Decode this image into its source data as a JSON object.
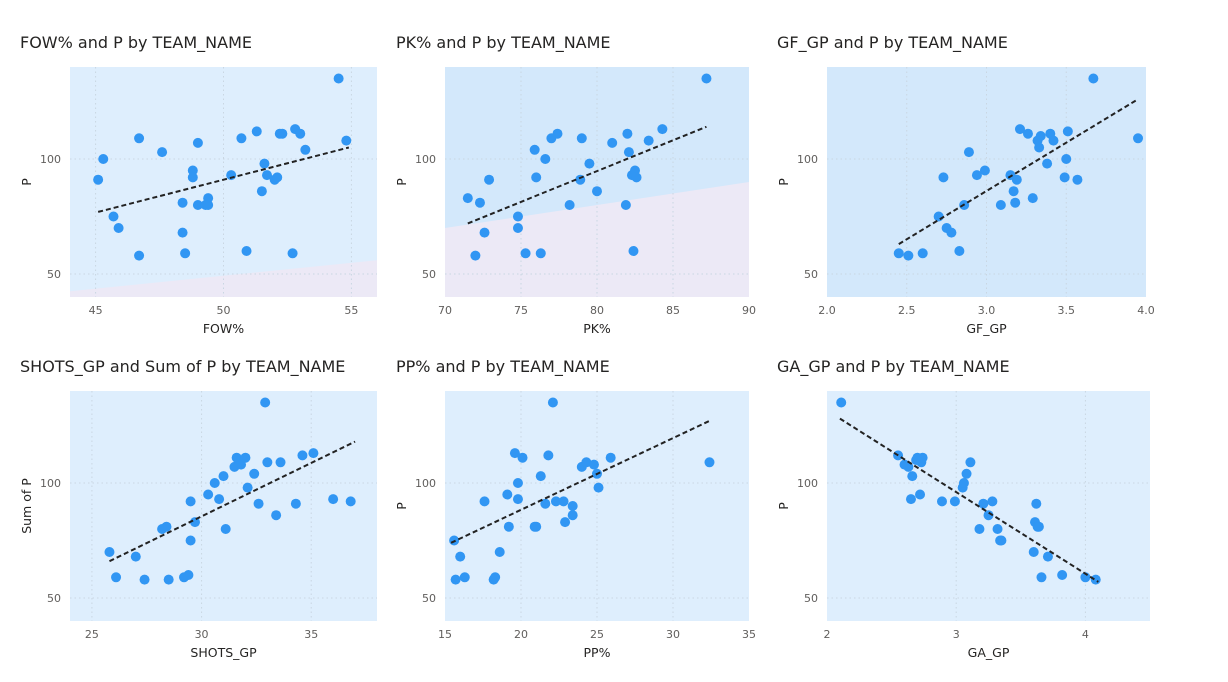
{
  "colors": {
    "point": "#3196f3",
    "trend": "#222222",
    "bg": "#deeefd",
    "bg2": "#d3e8fb",
    "band": "#ece9f6",
    "grid": "#c9d6e2",
    "axis_text": "#605e5c"
  },
  "chart_data": [
    {
      "type": "scatter",
      "title": "FOW% and P by TEAM_NAME",
      "xlabel": "FOW%",
      "ylabel": "P",
      "xlim": [
        44,
        56
      ],
      "ylim": [
        40,
        140
      ],
      "xticks": [
        45,
        50,
        55
      ],
      "yticks": [
        50,
        100
      ],
      "x": [
        45.1,
        45.3,
        45.7,
        45.9,
        46.7,
        46.7,
        47.6,
        48.4,
        48.4,
        48.5,
        48.8,
        48.8,
        49.0,
        49.0,
        49.3,
        49.4,
        49.4,
        50.3,
        50.7,
        50.9,
        51.3,
        51.5,
        51.6,
        51.7,
        52.0,
        52.1,
        52.2,
        52.3,
        52.7,
        52.8,
        53.0,
        53.2,
        54.5,
        54.8
      ],
      "y": [
        91,
        100,
        75,
        70,
        109,
        58,
        103,
        81,
        68,
        59,
        95,
        92,
        80,
        107,
        80,
        83,
        80,
        93,
        109,
        60,
        112,
        86,
        98,
        93,
        91,
        92,
        111,
        111,
        59,
        113,
        111,
        104,
        135,
        108
      ],
      "trend": [
        [
          45.1,
          77
        ],
        [
          54.9,
          105
        ]
      ]
    },
    {
      "type": "scatter",
      "title": "PK% and P by TEAM_NAME",
      "xlabel": "PK%",
      "ylabel": "P",
      "xlim": [
        70,
        90
      ],
      "ylim": [
        40,
        140
      ],
      "xticks": [
        70,
        75,
        80,
        85,
        90
      ],
      "yticks": [
        50,
        100
      ],
      "x": [
        71.5,
        72.0,
        72.3,
        72.6,
        72.9,
        74.8,
        74.8,
        75.3,
        75.9,
        76.0,
        76.3,
        76.6,
        77.0,
        77.4,
        78.2,
        78.9,
        79.0,
        79.5,
        80.0,
        81.0,
        81.9,
        82.0,
        82.1,
        82.3,
        82.4,
        82.5,
        82.6,
        83.4,
        84.3,
        87.2
      ],
      "y": [
        83,
        58,
        81,
        68,
        91,
        70,
        75,
        59,
        104,
        92,
        59,
        100,
        109,
        111,
        80,
        91,
        109,
        98,
        86,
        107,
        80,
        111,
        103,
        93,
        60,
        95,
        92,
        108,
        113,
        135
      ],
      "trend": [
        [
          71.5,
          72
        ],
        [
          87.2,
          114
        ]
      ]
    },
    {
      "type": "scatter",
      "title": "GF_GP and P by TEAM_NAME",
      "xlabel": "GF_GP",
      "ylabel": "P",
      "xlim": [
        2.0,
        4.0
      ],
      "ylim": [
        40,
        140
      ],
      "xticks": [
        2.0,
        2.5,
        3.0,
        3.5,
        4.0
      ],
      "yticks": [
        50,
        100
      ],
      "x": [
        2.45,
        2.51,
        2.6,
        2.7,
        2.73,
        2.75,
        2.78,
        2.83,
        2.86,
        2.89,
        2.94,
        2.99,
        3.09,
        3.15,
        3.17,
        3.18,
        3.19,
        3.21,
        3.26,
        3.29,
        3.32,
        3.33,
        3.34,
        3.38,
        3.4,
        3.42,
        3.49,
        3.5,
        3.51,
        3.57,
        3.67,
        3.95
      ],
      "y": [
        59,
        58,
        59,
        75,
        92,
        70,
        68,
        60,
        80,
        103,
        93,
        95,
        80,
        93,
        86,
        81,
        91,
        113,
        111,
        83,
        108,
        105,
        110,
        98,
        111,
        108,
        92,
        100,
        112,
        91,
        135,
        109
      ],
      "trend": [
        [
          2.45,
          63
        ],
        [
          3.95,
          126
        ]
      ]
    },
    {
      "type": "scatter",
      "title": "SHOTS_GP and Sum of P by TEAM_NAME",
      "xlabel": "SHOTS_GP",
      "ylabel": "Sum of P",
      "xlim": [
        24,
        38
      ],
      "ylim": [
        40,
        140
      ],
      "xticks": [
        25,
        30,
        35
      ],
      "yticks": [
        50,
        100
      ],
      "x": [
        25.8,
        26.1,
        27.0,
        27.4,
        28.2,
        28.4,
        28.5,
        29.2,
        29.4,
        29.5,
        29.5,
        29.7,
        30.3,
        30.6,
        30.8,
        31.0,
        31.1,
        31.5,
        31.6,
        31.8,
        32.0,
        32.1,
        32.4,
        32.6,
        32.9,
        33.0,
        33.4,
        33.6,
        34.3,
        34.6,
        35.1,
        36.0,
        36.8
      ],
      "y": [
        70,
        59,
        68,
        58,
        80,
        81,
        58,
        59,
        60,
        92,
        75,
        83,
        95,
        100,
        93,
        103,
        80,
        107,
        111,
        108,
        111,
        98,
        104,
        91,
        135,
        109,
        86,
        109,
        91,
        112,
        113,
        93,
        92
      ],
      "trend": [
        [
          25.8,
          66
        ],
        [
          37.0,
          118
        ]
      ]
    },
    {
      "type": "scatter",
      "title": "PP% and P by TEAM_NAME",
      "xlabel": "PP%",
      "ylabel": "P",
      "xlim": [
        15,
        35
      ],
      "ylim": [
        40,
        140
      ],
      "xticks": [
        15,
        20,
        25,
        30,
        35
      ],
      "yticks": [
        50,
        100
      ],
      "x": [
        15.6,
        15.7,
        16.0,
        16.3,
        17.6,
        18.2,
        18.3,
        18.6,
        19.1,
        19.2,
        19.6,
        19.8,
        19.8,
        20.1,
        20.9,
        21.0,
        21.3,
        21.6,
        21.8,
        22.1,
        22.3,
        22.8,
        22.9,
        23.4,
        23.4,
        24.0,
        24.3,
        24.8,
        25.0,
        25.1,
        25.9,
        32.4
      ],
      "y": [
        75,
        58,
        68,
        59,
        92,
        58,
        59,
        70,
        95,
        81,
        113,
        100,
        93,
        111,
        81,
        81,
        103,
        91,
        112,
        135,
        92,
        92,
        83,
        90,
        86,
        107,
        109,
        108,
        104,
        98,
        111,
        109
      ],
      "trend": [
        [
          15.4,
          74
        ],
        [
          32.4,
          127
        ]
      ]
    },
    {
      "type": "scatter",
      "title": "GA_GP and P by TEAM_NAME",
      "xlabel": "GA_GP",
      "ylabel": "P",
      "xlim": [
        2.0,
        4.5
      ],
      "ylim": [
        40,
        140
      ],
      "xticks": [
        2,
        3,
        4
      ],
      "yticks": [
        50,
        100
      ],
      "x": [
        2.11,
        2.55,
        2.6,
        2.63,
        2.65,
        2.66,
        2.69,
        2.7,
        2.72,
        2.73,
        2.74,
        2.89,
        2.99,
        3.05,
        3.06,
        3.08,
        3.11,
        3.18,
        3.21,
        3.25,
        3.28,
        3.32,
        3.34,
        3.35,
        3.6,
        3.61,
        3.62,
        3.63,
        3.64,
        3.66,
        3.71,
        3.82,
        4.0,
        4.08
      ],
      "y": [
        135,
        112,
        108,
        107,
        93,
        103,
        110,
        111,
        95,
        109,
        111,
        92,
        92,
        98,
        100,
        104,
        109,
        80,
        91,
        86,
        92,
        80,
        75,
        75,
        70,
        83,
        91,
        81,
        81,
        59,
        68,
        60,
        59,
        58
      ],
      "trend": [
        [
          2.1,
          128
        ],
        [
          4.1,
          57
        ]
      ]
    }
  ]
}
